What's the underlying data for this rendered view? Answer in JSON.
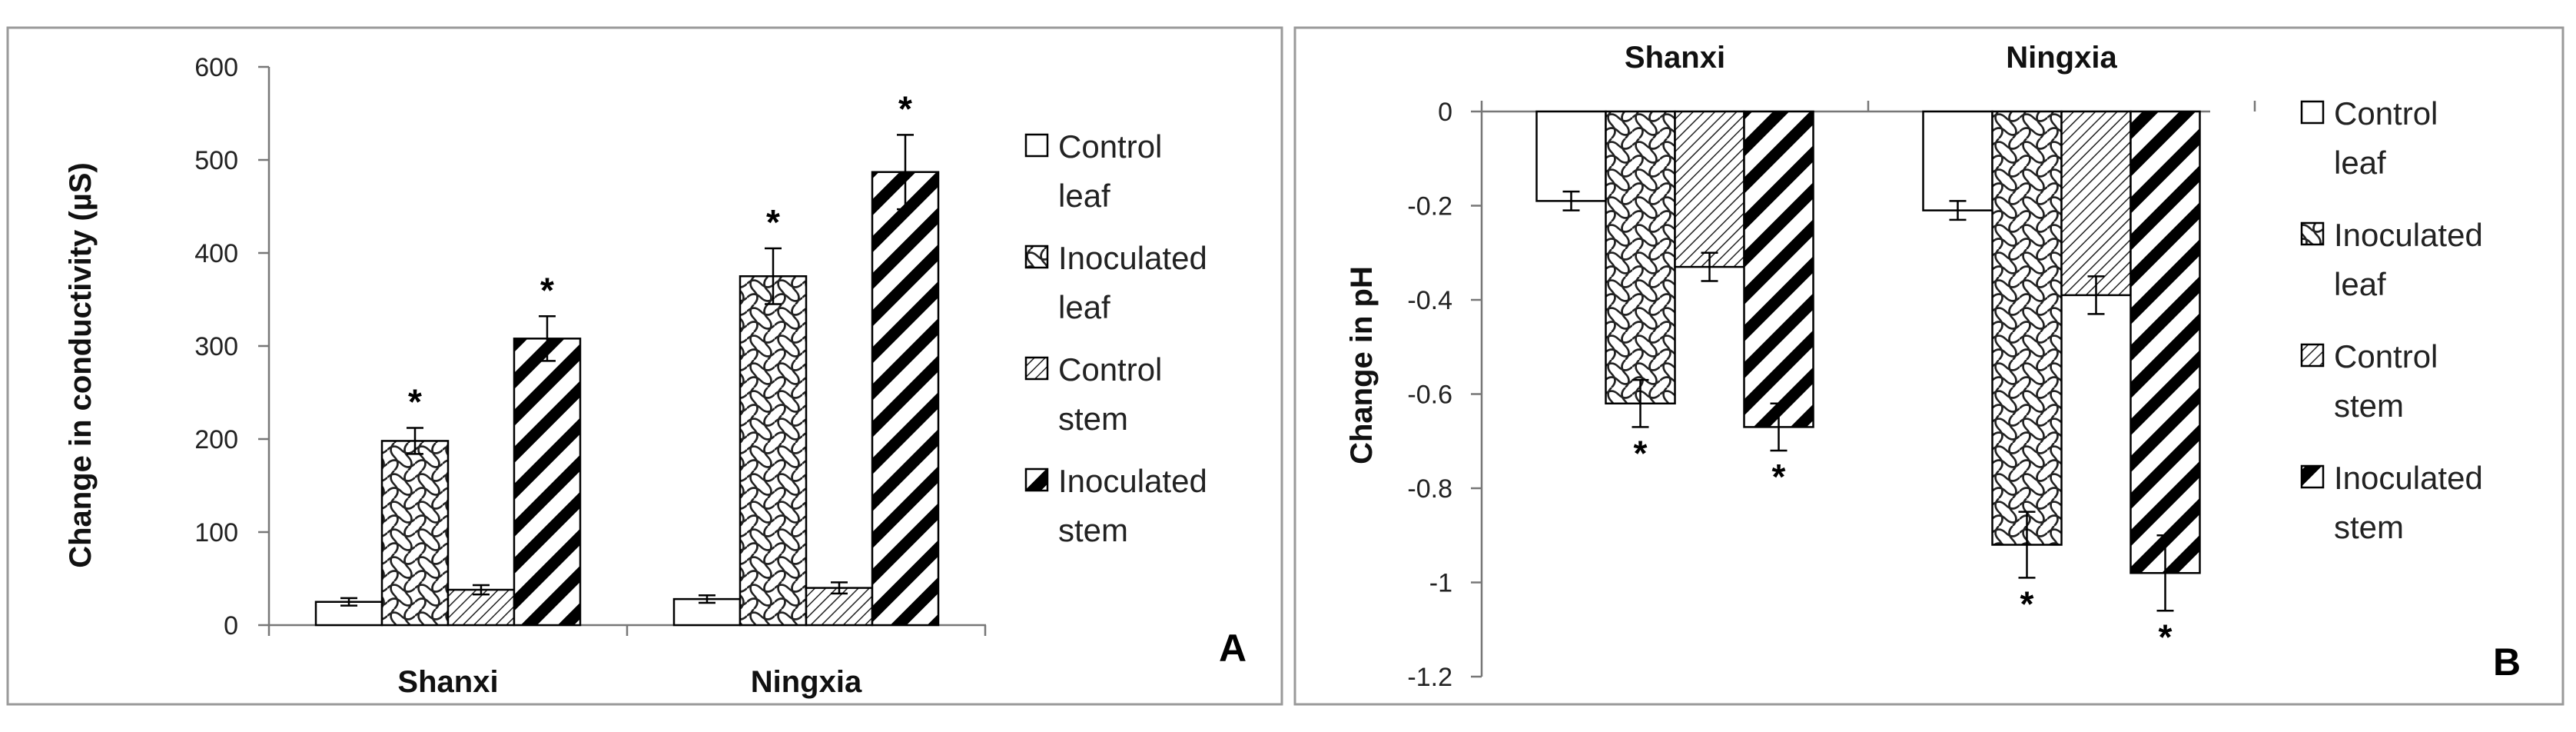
{
  "chart_data": [
    {
      "type": "bar",
      "panel_label": "A",
      "title": "",
      "xlabel": "",
      "ylabel": "Change in conductivity (µS)",
      "ylim": [
        0,
        600
      ],
      "yticks": [
        0,
        100,
        200,
        300,
        400,
        500,
        600
      ],
      "ytick_labels": [
        "0",
        "100",
        "200",
        "300",
        "400",
        "500",
        "600"
      ],
      "categories": [
        "Shanxi",
        "Ningxia"
      ],
      "legend_position": "right",
      "series": [
        {
          "name": "Control leaf",
          "legend_lines": [
            "Control",
            "leaf"
          ],
          "pattern": "plain",
          "values": [
            25,
            28
          ],
          "errors": [
            4,
            4
          ],
          "significance": [
            "",
            ""
          ]
        },
        {
          "name": "Inoculated leaf",
          "legend_lines": [
            "Inoculated",
            "leaf"
          ],
          "pattern": "weave",
          "values": [
            198,
            375
          ],
          "errors": [
            14,
            30
          ],
          "significance": [
            "*",
            "*"
          ]
        },
        {
          "name": "Control stem",
          "legend_lines": [
            "Control",
            "stem"
          ],
          "pattern": "thin-diagonal",
          "values": [
            38,
            40
          ],
          "errors": [
            5,
            6
          ],
          "significance": [
            "",
            ""
          ]
        },
        {
          "name": "Inoculated stem",
          "legend_lines": [
            "Inoculated",
            "stem"
          ],
          "pattern": "thick-diagonal",
          "values": [
            308,
            487
          ],
          "errors": [
            24,
            40
          ],
          "significance": [
            "*",
            "*"
          ]
        }
      ]
    },
    {
      "type": "bar",
      "panel_label": "B",
      "title": "",
      "xlabel": "",
      "ylabel": "Change in pH",
      "ylim": [
        -1.2,
        0
      ],
      "yticks": [
        0,
        -0.2,
        -0.4,
        -0.6,
        -0.8,
        -1,
        -1.2
      ],
      "ytick_labels": [
        "0",
        "-0.2",
        "-0.4",
        "-0.6",
        "-0.8",
        "-1",
        "-1.2"
      ],
      "categories": [
        "Shanxi",
        "Ningxia"
      ],
      "legend_position": "right",
      "series": [
        {
          "name": "Control leaf",
          "legend_lines": [
            "Control",
            "leaf"
          ],
          "pattern": "plain",
          "values": [
            -0.19,
            -0.21
          ],
          "errors": [
            0.02,
            0.02
          ],
          "significance": [
            "",
            ""
          ]
        },
        {
          "name": "Inoculated leaf",
          "legend_lines": [
            "Inoculated",
            "leaf"
          ],
          "pattern": "weave",
          "values": [
            -0.62,
            -0.92
          ],
          "errors": [
            0.05,
            0.07
          ],
          "significance": [
            "*",
            "*"
          ]
        },
        {
          "name": "Control stem",
          "legend_lines": [
            "Control",
            "stem"
          ],
          "pattern": "thin-diagonal",
          "values": [
            -0.33,
            -0.39
          ],
          "errors": [
            0.03,
            0.04
          ],
          "significance": [
            "",
            ""
          ]
        },
        {
          "name": "Inoculated stem",
          "legend_lines": [
            "Inoculated",
            "stem"
          ],
          "pattern": "thick-diagonal",
          "values": [
            -0.67,
            -0.98
          ],
          "errors": [
            0.05,
            0.08
          ],
          "significance": [
            "*",
            "*"
          ]
        }
      ]
    }
  ]
}
